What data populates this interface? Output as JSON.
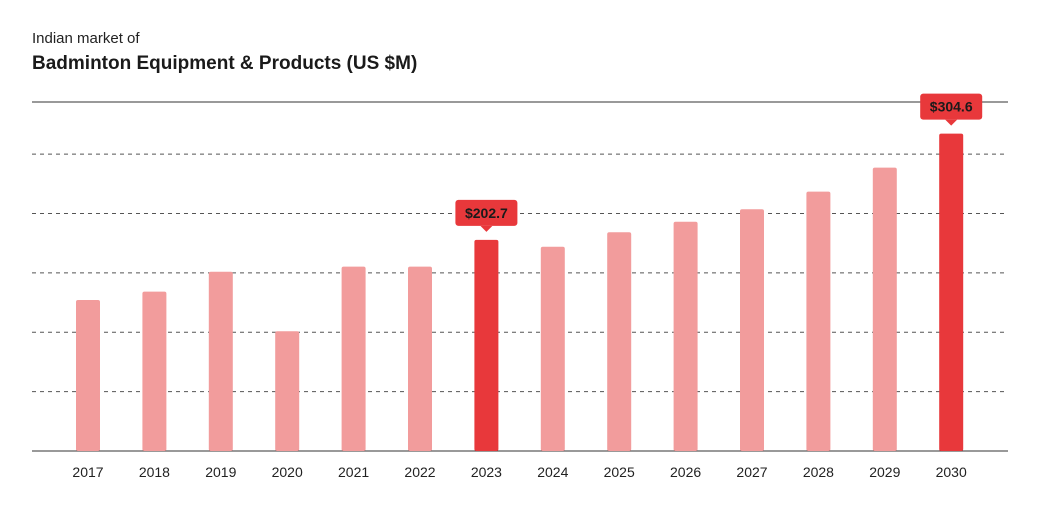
{
  "header": {
    "subtitle": "Indian market of",
    "title": "Badminton Equipment & Products (US $M)"
  },
  "chart_data": {
    "type": "bar",
    "subtitle": "Indian market of",
    "title": "Badminton Equipment & Products (US $M)",
    "xlabel": "",
    "ylabel": "",
    "categories": [
      "2017",
      "2018",
      "2019",
      "2020",
      "2021",
      "2022",
      "2023",
      "2024",
      "2025",
      "2026",
      "2027",
      "2028",
      "2029",
      "2030"
    ],
    "values": [
      145,
      153,
      172,
      115,
      177,
      177,
      202.7,
      196,
      210,
      220,
      232,
      249,
      272,
      304.6
    ],
    "ylim": [
      0,
      335
    ],
    "gridlines": [
      0,
      57,
      114,
      171,
      228,
      285
    ],
    "grid": true,
    "highlighted": [
      {
        "category": "2023",
        "label": "$202.7"
      },
      {
        "category": "2030",
        "label": "$304.6"
      }
    ],
    "colors": {
      "bar": "#f29c9c",
      "highlight": "#e8383b",
      "grid": "#555555"
    }
  }
}
